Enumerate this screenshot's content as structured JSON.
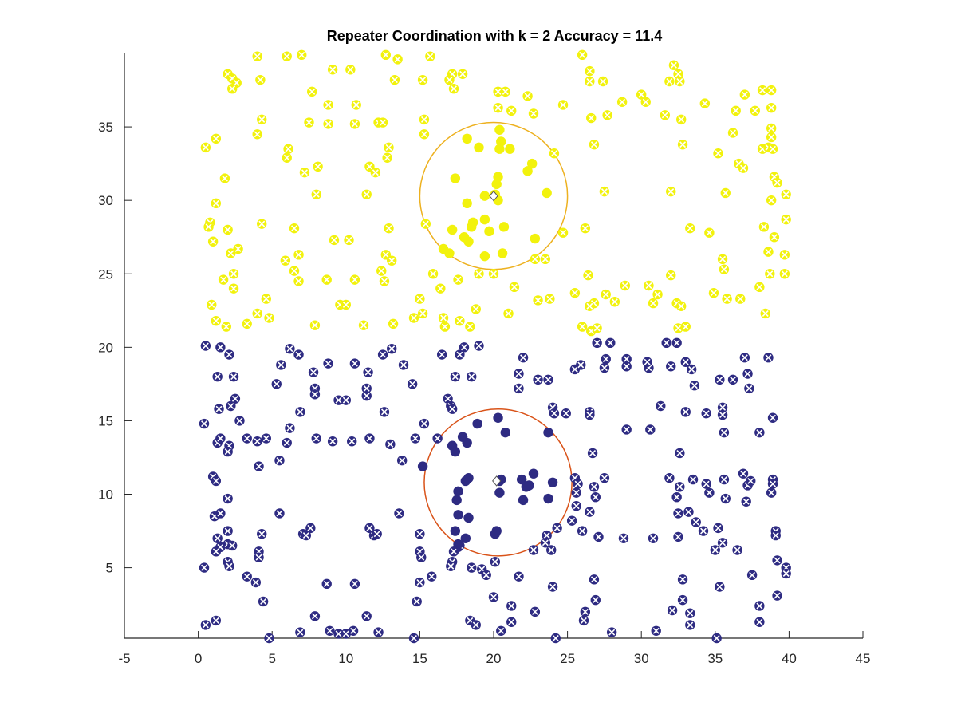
{
  "chart_data": {
    "type": "scatter",
    "title": "Repeater Coordination with k = 2 Accuracy = 11.4",
    "xlim": [
      -5,
      45
    ],
    "ylim": [
      0.2,
      40
    ],
    "xticks": [
      -5,
      0,
      5,
      10,
      15,
      20,
      25,
      30,
      35,
      40,
      45
    ],
    "yticks": [
      5,
      10,
      15,
      20,
      25,
      30,
      35
    ],
    "series": [
      {
        "color": "#f2f20d",
        "marker": "cross",
        "x": [
          0.5,
          1.2,
          0.8,
          0.7,
          1.0,
          1.2,
          0.9,
          1.2,
          1.9,
          1.8,
          2.0,
          2.2,
          2.7,
          1.7,
          2.4,
          2.4,
          2.0,
          2.3,
          2.6,
          2.3,
          4.0,
          4.2,
          4.3,
          4.0,
          4.3,
          4.0,
          4.6,
          4.8,
          3.3,
          6.0,
          7.0,
          6.1,
          6.0,
          5.9,
          6.5,
          6.8,
          6.8,
          6.5,
          7.2,
          7.5,
          7.7,
          8.1,
          8.0,
          7.9,
          8.7,
          8.8,
          8.8,
          9.1,
          9.2,
          9.6,
          10.0,
          10.3,
          10.2,
          10.6,
          10.6,
          10.7,
          11.4,
          11.6,
          11.2,
          12.0,
          12.2,
          12.5,
          12.7,
          12.9,
          12.8,
          12.9,
          12.7,
          13.1,
          12.4,
          12.6,
          13.2,
          13.3,
          13.5,
          14.6,
          15.0,
          15.2,
          15.2,
          15.3,
          15.3,
          15.4,
          15.7,
          15.9,
          16.4,
          16.6,
          16.7,
          17.2,
          17.3,
          17.0,
          17.9,
          17.6,
          17.7,
          18.8,
          18.4,
          19.0,
          20.0,
          20.3,
          20.3,
          20.8,
          21.2,
          21.4,
          21.0,
          22.3,
          22.7,
          22.8,
          23.0,
          23.5,
          23.8,
          24.1,
          24.7,
          24.7,
          25.5,
          26.0,
          26.4,
          26.2,
          26.5,
          26.5,
          26.6,
          26.8,
          26.8,
          26.5,
          26.0,
          26.6,
          27.0,
          27.4,
          27.5,
          27.6,
          27.7,
          28.2,
          28.7,
          28.9,
          30.0,
          30.3,
          30.5,
          30.8,
          31.1,
          31.6,
          31.9,
          32.0,
          32.0,
          32.2,
          32.5,
          32.6,
          32.7,
          32.8,
          32.4,
          32.7,
          32.5,
          33.0,
          33.3,
          34.3,
          34.6,
          34.9,
          35.2,
          35.5,
          35.6,
          35.7,
          35.8,
          36.2,
          36.4,
          36.6,
          36.9,
          36.7,
          37.0,
          37.7,
          38.0,
          38.2,
          38.2,
          38.3,
          38.4,
          38.6,
          38.6,
          38.8,
          38.8,
          38.8,
          38.8,
          38.9,
          38.8,
          38.7,
          39.0,
          39.2,
          39.0,
          39.8,
          39.8,
          39.7,
          39.7
        ],
        "values": [
          33.6,
          34.2,
          28.5,
          28.2,
          27.2,
          29.8,
          22.9,
          21.8,
          21.4,
          31.5,
          28.0,
          26.4,
          26.7,
          24.6,
          24.0,
          25.0,
          38.6,
          38.3,
          38.0,
          37.6,
          39.8,
          38.2,
          35.5,
          34.5,
          28.4,
          22.3,
          23.3,
          22.0,
          21.6,
          39.8,
          39.9,
          33.5,
          32.9,
          25.9,
          25.2,
          26.3,
          24.5,
          28.1,
          31.9,
          35.3,
          37.4,
          32.3,
          30.4,
          21.5,
          24.6,
          36.5,
          35.2,
          38.9,
          27.3,
          22.9,
          22.9,
          38.9,
          27.3,
          24.6,
          35.2,
          36.5,
          30.4,
          32.3,
          21.5,
          31.9,
          35.3,
          35.3,
          39.9,
          33.6,
          32.9,
          28.1,
          26.3,
          25.9,
          25.2,
          24.5,
          21.6,
          38.2,
          39.6,
          22.0,
          23.3,
          22.3,
          38.2,
          35.5,
          34.5,
          28.4,
          39.8,
          25.0,
          24.0,
          22.0,
          21.4,
          38.6,
          37.6,
          38.2,
          38.6,
          24.6,
          21.8,
          22.6,
          21.4,
          25.0,
          25.0,
          36.3,
          37.4,
          37.4,
          36.1,
          24.1,
          22.3,
          37.1,
          35.9,
          26.0,
          23.2,
          26.0,
          23.3,
          33.2,
          36.5,
          27.8,
          23.7,
          39.9,
          24.9,
          28.1,
          38.8,
          38.1,
          35.6,
          33.8,
          23.0,
          22.8,
          21.4,
          21.1,
          21.3,
          38.1,
          30.6,
          23.6,
          35.8,
          23.1,
          36.7,
          24.2,
          37.2,
          36.7,
          24.2,
          23.0,
          23.6,
          35.8,
          38.1,
          30.6,
          24.9,
          39.2,
          38.6,
          38.1,
          35.5,
          33.8,
          23.0,
          22.8,
          21.3,
          21.4,
          28.1,
          36.6,
          27.8,
          23.7,
          33.2,
          26.0,
          25.3,
          30.5,
          23.3,
          34.6,
          36.1,
          32.5,
          32.2,
          23.3,
          37.2,
          36.1,
          24.1,
          33.5,
          37.5,
          28.2,
          22.3,
          33.6,
          26.5,
          37.5,
          36.3,
          34.9,
          34.3,
          33.5,
          30.0,
          25.0,
          31.6,
          31.2,
          27.5,
          30.4,
          28.7,
          26.3,
          25.0
        ]
      },
      {
        "color": "#f2f20d",
        "marker": "dot",
        "x": [
          18.2,
          19.0,
          20.4,
          20.5,
          20.4,
          21.1,
          22.6,
          22.3,
          17.4,
          20.3,
          20.2,
          20.1,
          19.4,
          18.2,
          20.3,
          23.6,
          18.6,
          19.4,
          18.5,
          17.2,
          18.0,
          19.7,
          20.7,
          18.3,
          22.8,
          20.6,
          19.4,
          17.0,
          16.6
        ],
        "values": [
          34.2,
          33.6,
          34.8,
          34.0,
          33.5,
          33.5,
          32.5,
          32.0,
          31.5,
          31.6,
          31.1,
          30.4,
          30.3,
          29.8,
          30.0,
          30.5,
          28.5,
          28.7,
          28.2,
          28.0,
          27.5,
          27.9,
          28.2,
          27.2,
          27.4,
          26.4,
          26.2,
          26.4,
          26.7
        ]
      },
      {
        "color": "#2e2b82",
        "marker": "cross",
        "x": [
          0.5,
          1.3,
          1.4,
          0.4,
          1.3,
          1.5,
          2.1,
          2.0,
          2.2,
          2.5,
          2.8,
          2.4,
          1.5,
          2.1,
          3.3,
          4.1,
          4.0,
          4.6,
          5.3,
          5.6,
          6.2,
          6.8,
          6.2,
          6.0,
          5.5,
          6.9,
          7.8,
          7.9,
          7.9,
          8.0,
          8.8,
          9.1,
          9.5,
          10.0,
          10.4,
          10.6,
          11.6,
          11.5,
          11.4,
          11.4,
          12.5,
          12.6,
          13.0,
          13.1,
          13.9,
          13.8,
          14.5,
          14.7,
          15.3,
          16.2,
          16.5,
          16.9,
          17.1,
          17.2,
          17.4,
          17.7,
          18.0,
          18.5,
          19.0,
          21.7,
          21.7,
          22.0,
          23.0,
          23.7,
          24.0,
          24.1,
          24.9,
          25.5,
          25.9,
          26.5,
          26.5,
          27.0,
          27.5,
          27.6,
          27.9,
          29.0,
          29.0,
          29.0,
          30.5,
          30.4,
          30.6,
          31.3,
          31.7,
          32.0,
          32.4,
          33.0,
          33.0,
          33.4,
          33.6,
          34.4,
          35.3,
          35.5,
          35.5,
          35.6,
          36.2,
          37.0,
          37.2,
          37.3,
          38.0,
          38.6,
          38.9,
          0.4,
          0.5,
          1.2,
          1.0,
          1.2,
          1.1,
          1.5,
          2.0,
          1.3,
          2.0,
          1.5,
          2.0,
          2.3,
          1.2,
          2.0,
          2.1,
          3.3,
          4.1,
          4.1,
          3.9,
          4.3,
          4.4,
          4.8,
          5.5,
          7.1,
          7.3,
          7.6,
          6.9,
          7.9,
          8.7,
          8.9,
          9.5,
          10.0,
          10.5,
          10.6,
          11.4,
          11.6,
          11.9,
          12.1,
          12.2,
          13.6,
          14.6,
          14.8,
          15.0,
          15.0,
          15.1,
          15.0,
          15.8,
          17.2,
          17.1,
          17.6,
          17.3,
          17.7,
          18.5,
          18.4,
          18.8,
          19.2,
          19.5,
          20.0,
          20.1,
          20.5,
          21.2,
          21.2,
          21.7,
          22.7,
          22.8,
          23.6,
          23.5,
          23.9,
          24.0,
          24.2,
          24.3,
          25.3,
          25.5,
          25.7,
          25.6,
          25.6,
          26.0,
          26.1,
          26.2,
          26.8,
          26.9,
          26.5,
          26.8,
          26.9,
          26.7,
          27.1,
          27.5,
          28.0,
          28.8,
          30.8,
          31.0,
          31.9,
          32.1,
          32.5,
          32.5,
          32.4,
          32.6,
          32.6,
          32.8,
          32.8,
          33.2,
          33.3,
          33.3,
          33.5,
          33.7,
          34.2,
          34.4,
          34.6,
          35.0,
          35.2,
          35.1,
          35.3,
          35.5,
          35.6,
          35.7,
          36.5,
          36.9,
          37.2,
          37.4,
          37.1,
          37.5,
          38.0,
          38.0,
          38.9,
          38.9,
          38.8,
          39.1,
          39.1,
          39.2,
          39.2,
          39.8,
          39.8
        ],
        "values": [
          20.1,
          18.0,
          15.8,
          14.8,
          13.5,
          13.8,
          13.3,
          12.9,
          16.0,
          16.5,
          15.0,
          18.0,
          20.0,
          19.5,
          13.8,
          11.9,
          13.6,
          13.8,
          17.5,
          18.8,
          19.9,
          19.5,
          14.5,
          13.5,
          12.3,
          15.6,
          18.3,
          17.2,
          16.8,
          13.8,
          18.9,
          13.6,
          16.4,
          16.4,
          13.6,
          18.9,
          13.8,
          18.3,
          17.2,
          16.7,
          19.5,
          15.6,
          13.4,
          19.9,
          18.8,
          12.3,
          17.5,
          13.8,
          14.8,
          13.8,
          19.5,
          16.5,
          16.0,
          15.8,
          18.0,
          19.5,
          20.0,
          18.0,
          20.1,
          18.2,
          17.2,
          19.3,
          17.8,
          17.8,
          15.9,
          15.5,
          15.5,
          18.5,
          18.8,
          15.6,
          15.4,
          20.3,
          18.6,
          19.2,
          20.3,
          18.7,
          19.2,
          14.4,
          18.6,
          19.0,
          14.4,
          16.0,
          20.3,
          18.7,
          20.3,
          19.0,
          15.6,
          18.5,
          17.4,
          15.5,
          17.8,
          15.9,
          15.4,
          14.2,
          17.8,
          19.3,
          18.2,
          17.2,
          14.2,
          19.3,
          15.2,
          5.0,
          1.1,
          1.4,
          11.2,
          10.9,
          8.5,
          8.7,
          9.7,
          7.0,
          7.5,
          6.4,
          6.6,
          6.5,
          6.1,
          5.4,
          5.1,
          4.4,
          6.1,
          5.7,
          4.0,
          7.3,
          2.7,
          0.2,
          8.7,
          7.3,
          7.2,
          7.7,
          0.6,
          1.7,
          3.9,
          0.7,
          0.5,
          0.5,
          0.7,
          3.9,
          1.7,
          7.7,
          7.2,
          7.3,
          0.6,
          8.7,
          0.2,
          2.7,
          4.0,
          6.1,
          5.7,
          7.3,
          4.4,
          5.4,
          5.1,
          6.4,
          6.1,
          6.5,
          5.0,
          1.4,
          1.1,
          4.9,
          4.5,
          3.0,
          5.4,
          0.7,
          2.4,
          1.3,
          4.4,
          6.2,
          2.0,
          7.2,
          6.7,
          6.2,
          3.7,
          0.2,
          7.7,
          8.2,
          11.1,
          10.7,
          10.1,
          9.2,
          7.5,
          1.4,
          2.0,
          4.2,
          2.8,
          8.8,
          10.5,
          9.8,
          12.8,
          7.1,
          11.1,
          0.6,
          7.0,
          7.0,
          0.7,
          11.1,
          2.1,
          7.1,
          8.7,
          9.8,
          10.5,
          12.8,
          2.8,
          4.2,
          8.8,
          1.9,
          1.1,
          11.0,
          8.1,
          7.5,
          10.7,
          10.1,
          6.2,
          7.7,
          0.2,
          3.7,
          6.7,
          11.0,
          9.7,
          6.2,
          11.4,
          10.6,
          10.9,
          9.5,
          4.5,
          2.4,
          1.3,
          11.0,
          10.7,
          10.1,
          7.5,
          7.2,
          5.5,
          3.1,
          5.0,
          4.6
        ]
      },
      {
        "color": "#2e2b82",
        "marker": "dot",
        "x": [
          20.3,
          20.8,
          18.9,
          17.9,
          18.2,
          17.2,
          17.4,
          23.7,
          15.2,
          18.3,
          18.1,
          17.6,
          20.4,
          20.5,
          22.7,
          21.9,
          22.4,
          22.2,
          24.0,
          20.4,
          22.0,
          23.7,
          17.5,
          17.6,
          18.3,
          17.4,
          20.2,
          20.1,
          18.1,
          17.6
        ],
        "values": [
          15.2,
          14.2,
          14.8,
          13.9,
          13.5,
          13.3,
          12.9,
          14.2,
          11.9,
          11.1,
          10.9,
          10.2,
          10.9,
          11.0,
          11.4,
          11.0,
          10.6,
          10.5,
          10.8,
          10.1,
          9.6,
          9.7,
          9.6,
          8.6,
          8.4,
          7.5,
          7.5,
          7.3,
          7.0,
          6.6
        ]
      },
      {
        "color": "#ffffff",
        "marker": "diamond",
        "edgecolor": "#555555",
        "x": [
          20.0,
          20.2
        ],
        "values": [
          30.3,
          10.9
        ]
      }
    ],
    "circles": [
      {
        "x": 20.0,
        "y": 30.3,
        "r": 5.0,
        "color": "#edb120"
      },
      {
        "x": 20.3,
        "y": 10.8,
        "r": 5.0,
        "color": "#d95319"
      }
    ]
  }
}
